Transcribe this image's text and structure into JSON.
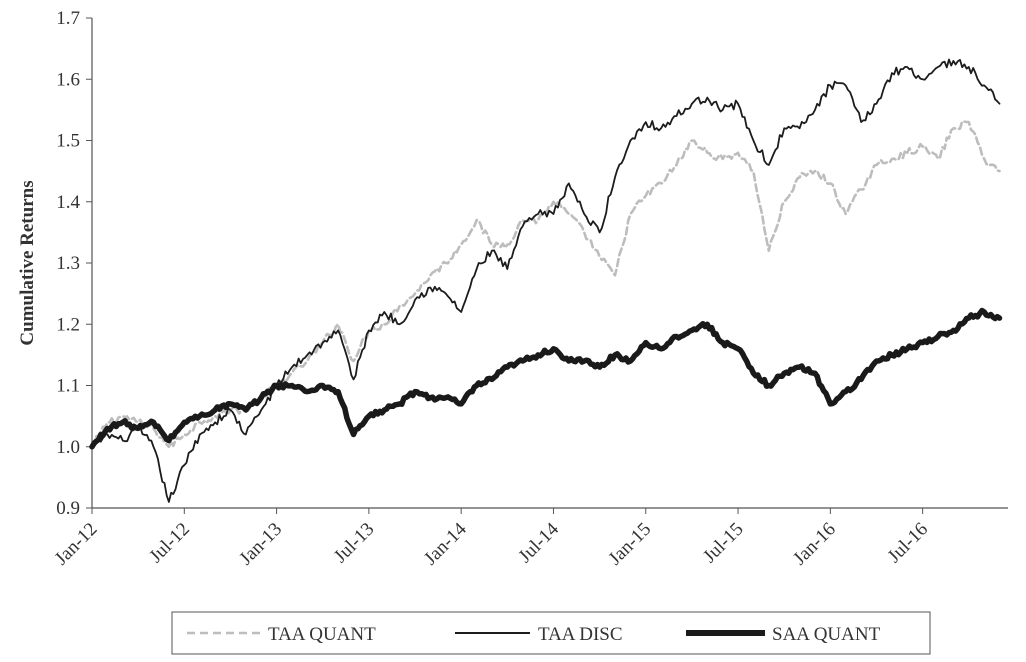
{
  "chart_data": {
    "type": "line",
    "title": "",
    "xlabel": "",
    "ylabel": "Cumulative Returns",
    "ylim": [
      0.9,
      1.7
    ],
    "y_ticks": [
      "0.9",
      "1.0",
      "1.1",
      "1.2",
      "1.3",
      "1.4",
      "1.5",
      "1.6",
      "1.7"
    ],
    "x_range": [
      "2012-01",
      "2016-12"
    ],
    "x_ticks": [
      {
        "label": "Jan-12",
        "x": "2012-01"
      },
      {
        "label": "Jul-12",
        "x": "2012-07"
      },
      {
        "label": "Jan-13",
        "x": "2013-01"
      },
      {
        "label": "Jul-13",
        "x": "2013-07"
      },
      {
        "label": "Jan-14",
        "x": "2014-01"
      },
      {
        "label": "Jul-14",
        "x": "2014-07"
      },
      {
        "label": "Jan-15",
        "x": "2015-01"
      },
      {
        "label": "Jul-15",
        "x": "2015-07"
      },
      {
        "label": "Jan-16",
        "x": "2016-01"
      },
      {
        "label": "Jul-16",
        "x": "2016-07"
      }
    ],
    "grid": false,
    "legend_position": "bottom",
    "colors": {
      "taa_quant": "#bdbdbd",
      "taa_disc": "#1c1c1c",
      "saa_quant": "#1a1a1a"
    },
    "series": [
      {
        "name": "TAA QUANT",
        "style": "dashed",
        "x": [
          "2012-01",
          "2012-02",
          "2012-03",
          "2012-04",
          "2012-05",
          "2012-06",
          "2012-07",
          "2012-08",
          "2012-09",
          "2012-10",
          "2012-11",
          "2012-12",
          "2013-01",
          "2013-02",
          "2013-03",
          "2013-04",
          "2013-05",
          "2013-06",
          "2013-07",
          "2013-08",
          "2013-09",
          "2013-10",
          "2013-11",
          "2013-12",
          "2014-01",
          "2014-02",
          "2014-03",
          "2014-04",
          "2014-05",
          "2014-06",
          "2014-07",
          "2014-08",
          "2014-09",
          "2014-10",
          "2014-11",
          "2014-12",
          "2015-01",
          "2015-02",
          "2015-03",
          "2015-04",
          "2015-05",
          "2015-06",
          "2015-07",
          "2015-08",
          "2015-09",
          "2015-10",
          "2015-11",
          "2015-12",
          "2016-01",
          "2016-02",
          "2016-03",
          "2016-04",
          "2016-05",
          "2016-06",
          "2016-07",
          "2016-08",
          "2016-09",
          "2016-10",
          "2016-11",
          "2016-12"
        ],
        "values": [
          1.0,
          1.04,
          1.05,
          1.04,
          1.03,
          1.0,
          1.02,
          1.04,
          1.05,
          1.06,
          1.06,
          1.08,
          1.1,
          1.12,
          1.14,
          1.17,
          1.2,
          1.14,
          1.19,
          1.2,
          1.23,
          1.25,
          1.28,
          1.3,
          1.33,
          1.37,
          1.33,
          1.33,
          1.37,
          1.37,
          1.4,
          1.38,
          1.35,
          1.31,
          1.28,
          1.38,
          1.41,
          1.43,
          1.46,
          1.5,
          1.48,
          1.47,
          1.48,
          1.45,
          1.32,
          1.4,
          1.44,
          1.45,
          1.43,
          1.38,
          1.42,
          1.46,
          1.47,
          1.48,
          1.49,
          1.47,
          1.52,
          1.53,
          1.47,
          1.45
        ]
      },
      {
        "name": "TAA DISC",
        "style": "solid",
        "x": [
          "2012-01",
          "2012-02",
          "2012-03",
          "2012-04",
          "2012-05",
          "2012-06",
          "2012-07",
          "2012-08",
          "2012-09",
          "2012-10",
          "2012-11",
          "2012-12",
          "2013-01",
          "2013-02",
          "2013-03",
          "2013-04",
          "2013-05",
          "2013-06",
          "2013-07",
          "2013-08",
          "2013-09",
          "2013-10",
          "2013-11",
          "2013-12",
          "2014-01",
          "2014-02",
          "2014-03",
          "2014-04",
          "2014-05",
          "2014-06",
          "2014-07",
          "2014-08",
          "2014-09",
          "2014-10",
          "2014-11",
          "2014-12",
          "2015-01",
          "2015-02",
          "2015-03",
          "2015-04",
          "2015-05",
          "2015-06",
          "2015-07",
          "2015-08",
          "2015-09",
          "2015-10",
          "2015-11",
          "2015-12",
          "2016-01",
          "2016-02",
          "2016-03",
          "2016-04",
          "2016-05",
          "2016-06",
          "2016-07",
          "2016-08",
          "2016-09",
          "2016-10",
          "2016-11",
          "2016-12"
        ],
        "values": [
          1.0,
          1.02,
          1.01,
          1.03,
          1.0,
          0.91,
          0.97,
          1.02,
          1.04,
          1.06,
          1.02,
          1.06,
          1.1,
          1.13,
          1.15,
          1.17,
          1.19,
          1.11,
          1.19,
          1.22,
          1.2,
          1.24,
          1.26,
          1.25,
          1.22,
          1.29,
          1.32,
          1.29,
          1.36,
          1.38,
          1.38,
          1.43,
          1.38,
          1.35,
          1.44,
          1.5,
          1.53,
          1.52,
          1.54,
          1.56,
          1.57,
          1.55,
          1.56,
          1.5,
          1.46,
          1.52,
          1.52,
          1.55,
          1.59,
          1.59,
          1.53,
          1.56,
          1.61,
          1.62,
          1.6,
          1.62,
          1.63,
          1.62,
          1.59,
          1.56
        ]
      },
      {
        "name": "SAA QUANT",
        "style": "thick",
        "x": [
          "2012-01",
          "2012-02",
          "2012-03",
          "2012-04",
          "2012-05",
          "2012-06",
          "2012-07",
          "2012-08",
          "2012-09",
          "2012-10",
          "2012-11",
          "2012-12",
          "2013-01",
          "2013-02",
          "2013-03",
          "2013-04",
          "2013-05",
          "2013-06",
          "2013-07",
          "2013-08",
          "2013-09",
          "2013-10",
          "2013-11",
          "2013-12",
          "2014-01",
          "2014-02",
          "2014-03",
          "2014-04",
          "2014-05",
          "2014-06",
          "2014-07",
          "2014-08",
          "2014-09",
          "2014-10",
          "2014-11",
          "2014-12",
          "2015-01",
          "2015-02",
          "2015-03",
          "2015-04",
          "2015-05",
          "2015-06",
          "2015-07",
          "2015-08",
          "2015-09",
          "2015-10",
          "2015-11",
          "2015-12",
          "2016-01",
          "2016-02",
          "2016-03",
          "2016-04",
          "2016-05",
          "2016-06",
          "2016-07",
          "2016-08",
          "2016-09",
          "2016-10",
          "2016-11",
          "2016-12"
        ],
        "values": [
          1.0,
          1.03,
          1.04,
          1.03,
          1.04,
          1.01,
          1.04,
          1.05,
          1.06,
          1.07,
          1.06,
          1.08,
          1.1,
          1.1,
          1.09,
          1.1,
          1.09,
          1.02,
          1.05,
          1.06,
          1.07,
          1.09,
          1.08,
          1.08,
          1.07,
          1.1,
          1.11,
          1.13,
          1.14,
          1.15,
          1.16,
          1.14,
          1.14,
          1.13,
          1.15,
          1.14,
          1.17,
          1.16,
          1.18,
          1.19,
          1.2,
          1.17,
          1.16,
          1.12,
          1.1,
          1.12,
          1.13,
          1.12,
          1.07,
          1.09,
          1.11,
          1.14,
          1.15,
          1.16,
          1.17,
          1.18,
          1.19,
          1.21,
          1.22,
          1.21
        ]
      }
    ]
  }
}
